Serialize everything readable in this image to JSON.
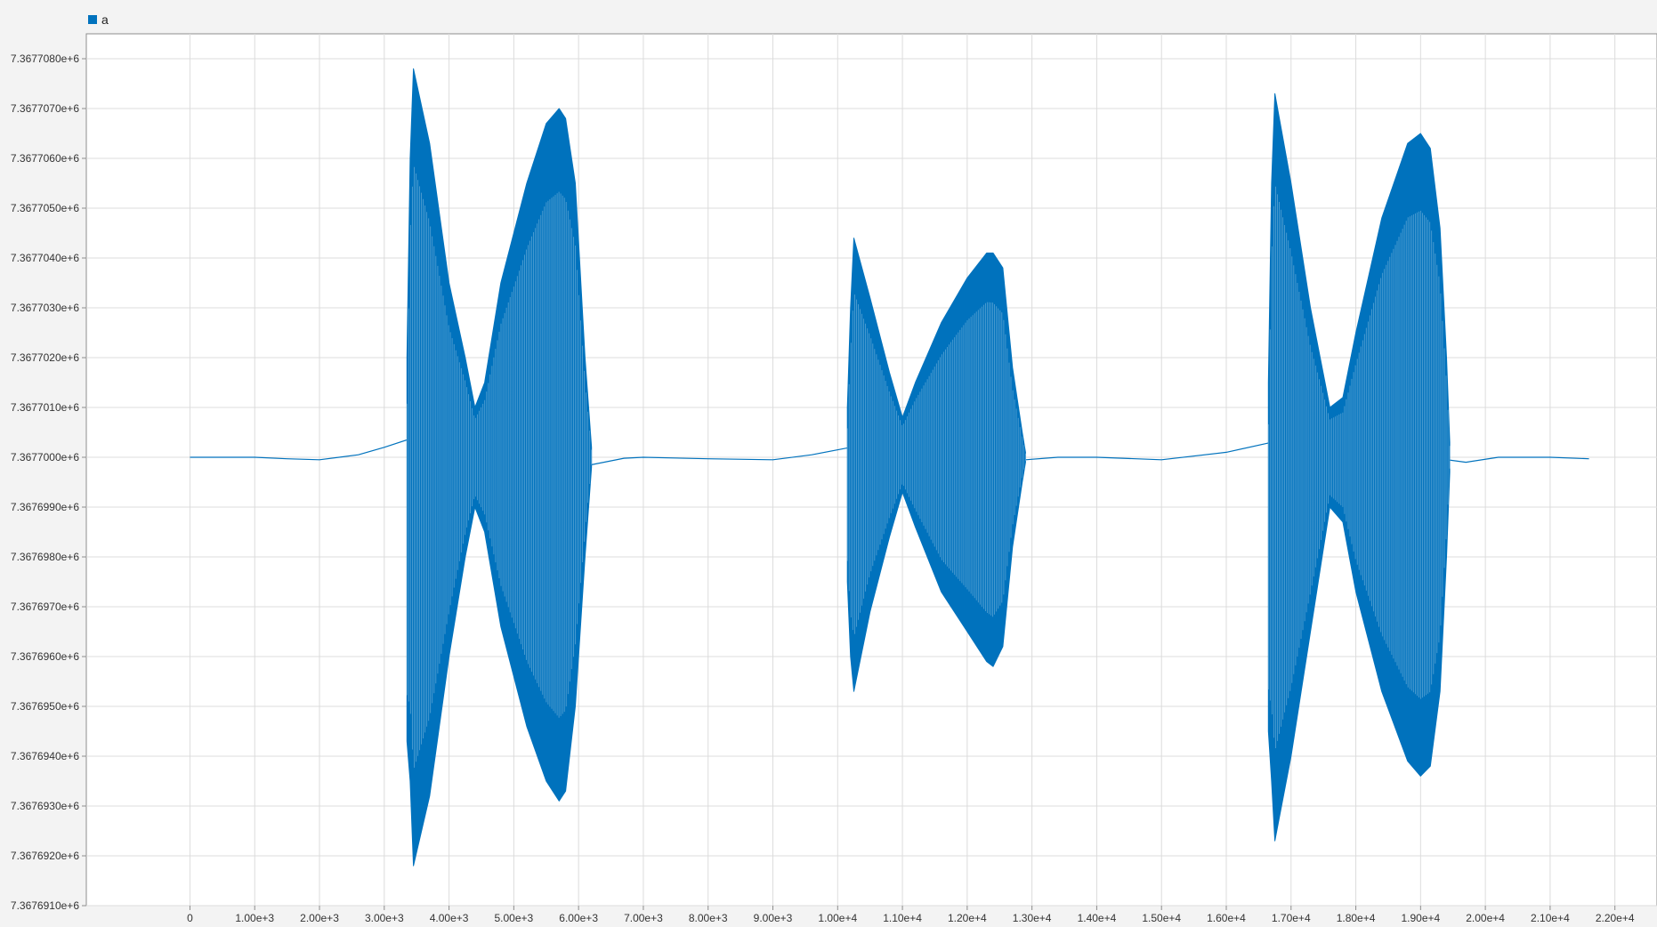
{
  "chart_data": {
    "type": "line",
    "title": "",
    "xlabel": "",
    "ylabel": "",
    "xlim": [
      -1600,
      22650
    ],
    "ylim": [
      7367691,
      7367708.5
    ],
    "grid": true,
    "legend": {
      "placement": "top-left",
      "entries": [
        "a"
      ]
    },
    "x_ticks": [
      {
        "value": 0,
        "label": "0"
      },
      {
        "value": 1000,
        "label": "1.00e+3"
      },
      {
        "value": 2000,
        "label": "2.00e+3"
      },
      {
        "value": 3000,
        "label": "3.00e+3"
      },
      {
        "value": 4000,
        "label": "4.00e+3"
      },
      {
        "value": 5000,
        "label": "5.00e+3"
      },
      {
        "value": 6000,
        "label": "6.00e+3"
      },
      {
        "value": 7000,
        "label": "7.00e+3"
      },
      {
        "value": 8000,
        "label": "8.00e+3"
      },
      {
        "value": 9000,
        "label": "9.00e+3"
      },
      {
        "value": 10000,
        "label": "1.00e+4"
      },
      {
        "value": 11000,
        "label": "1.10e+4"
      },
      {
        "value": 12000,
        "label": "1.20e+4"
      },
      {
        "value": 13000,
        "label": "1.30e+4"
      },
      {
        "value": 14000,
        "label": "1.40e+4"
      },
      {
        "value": 15000,
        "label": "1.50e+4"
      },
      {
        "value": 16000,
        "label": "1.60e+4"
      },
      {
        "value": 17000,
        "label": "1.70e+4"
      },
      {
        "value": 18000,
        "label": "1.80e+4"
      },
      {
        "value": 19000,
        "label": "1.90e+4"
      },
      {
        "value": 20000,
        "label": "2.00e+4"
      },
      {
        "value": 21000,
        "label": "2.10e+4"
      },
      {
        "value": 22000,
        "label": "2.20e+4"
      }
    ],
    "y_ticks": [
      {
        "value": 7367708,
        "label": "7.3677080e+6"
      },
      {
        "value": 7367707,
        "label": "7.3677070e+6"
      },
      {
        "value": 7367706,
        "label": "7.3677060e+6"
      },
      {
        "value": 7367705,
        "label": "7.3677050e+6"
      },
      {
        "value": 7367704,
        "label": "7.3677040e+6"
      },
      {
        "value": 7367703,
        "label": "7.3677030e+6"
      },
      {
        "value": 7367702,
        "label": "7.3677020e+6"
      },
      {
        "value": 7367701,
        "label": "7.3677010e+6"
      },
      {
        "value": 7367700,
        "label": "7.3677000e+6"
      },
      {
        "value": 7367699,
        "label": "7.3676990e+6"
      },
      {
        "value": 7367698,
        "label": "7.3676980e+6"
      },
      {
        "value": 7367697,
        "label": "7.3676970e+6"
      },
      {
        "value": 7367696,
        "label": "7.3676960e+6"
      },
      {
        "value": 7367695,
        "label": "7.3676950e+6"
      },
      {
        "value": 7367694,
        "label": "7.3676940e+6"
      },
      {
        "value": 7367693,
        "label": "7.3676930e+6"
      },
      {
        "value": 7367692,
        "label": "7.3676920e+6"
      },
      {
        "value": 7367691,
        "label": "7.3676910e+6"
      }
    ],
    "series": [
      {
        "name": "a",
        "color": "#0072bd",
        "center": 7367700,
        "baseline": {
          "x": [
            0,
            1000,
            1500,
            2000,
            2600,
            3000,
            3400,
            6200,
            6700,
            7000,
            8000,
            9000,
            9600,
            10200,
            12900,
            13400,
            14000,
            15000,
            16000,
            16700,
            17000,
            19700,
            20200,
            21000,
            21600
          ],
          "y": [
            7367700,
            7367700,
            7367699.97,
            7367699.95,
            7367700.05,
            7367700.2,
            7367700.37,
            7367699.85,
            7367699.98,
            7367700,
            7367699.97,
            7367699.95,
            7367700.05,
            7367700.2,
            7367699.95,
            7367700,
            7367700,
            7367699.95,
            7367700.1,
            7367700.3,
            7367700.37,
            7367699.9,
            7367700,
            7367700,
            7367699.97
          ]
        },
        "bursts": [
          {
            "x": [
              3350,
              3400,
              3450,
              3700,
              4000,
              4250,
              4400,
              4550,
              4800,
              5200,
              5500,
              5700,
              5800,
              5950,
              6100,
              6200
            ],
            "upper": [
              7367702,
              7367706,
              7367707.8,
              7367706.3,
              7367703.5,
              7367702,
              7367701,
              7367701.5,
              7367703.5,
              7367705.5,
              7367706.7,
              7367707,
              7367706.8,
              7367705.5,
              7367702,
              7367700.2
            ],
            "lower": [
              7367694.3,
              7367693.5,
              7367691.8,
              7367693.2,
              7367696,
              7367698,
              7367699,
              7367698.5,
              7367696.6,
              7367694.6,
              7367693.5,
              7367693.1,
              7367693.3,
              7367695,
              7367698,
              7367699.8
            ]
          },
          {
            "x": [
              10150,
              10200,
              10250,
              10500,
              10800,
              11000,
              11200,
              11600,
              12000,
              12300,
              12400,
              12550,
              12700,
              12850,
              12900
            ],
            "upper": [
              7367701,
              7367703,
              7367704.4,
              7367703.2,
              7367701.7,
              7367700.8,
              7367701.5,
              7367702.7,
              7367703.6,
              7367704.1,
              7367704.1,
              7367703.8,
              7367701.8,
              7367700.5,
              7367700.1
            ],
            "lower": [
              7367697.5,
              7367696,
              7367695.3,
              7367696.9,
              7367698.4,
              7367699.3,
              7367698.6,
              7367697.3,
              7367696.5,
              7367695.9,
              7367695.8,
              7367696.2,
              7367698.2,
              7367699.5,
              7367699.9
            ],
            "outliers": [
              {
                "x": 10250,
                "y": 7367695.4
              }
            ]
          },
          {
            "x": [
              16650,
              16700,
              16750,
              17000,
              17300,
              17600,
              17800,
              18000,
              18400,
              18800,
              19000,
              19150,
              19300,
              19400,
              19450
            ],
            "upper": [
              7367701.5,
              7367705.5,
              7367707.3,
              7367705.5,
              7367703,
              7367701,
              7367701.2,
              7367702.5,
              7367704.8,
              7367706.3,
              7367706.5,
              7367706.2,
              7367704.6,
              7367702,
              7367700.3
            ],
            "lower": [
              7367694.5,
              7367693.5,
              7367692.3,
              7367694,
              7367696.5,
              7367699,
              7367698.7,
              7367697.3,
              7367695.3,
              7367693.9,
              7367693.6,
              7367693.8,
              7367695.3,
              7367698,
              7367699.7
            ]
          }
        ]
      }
    ]
  }
}
